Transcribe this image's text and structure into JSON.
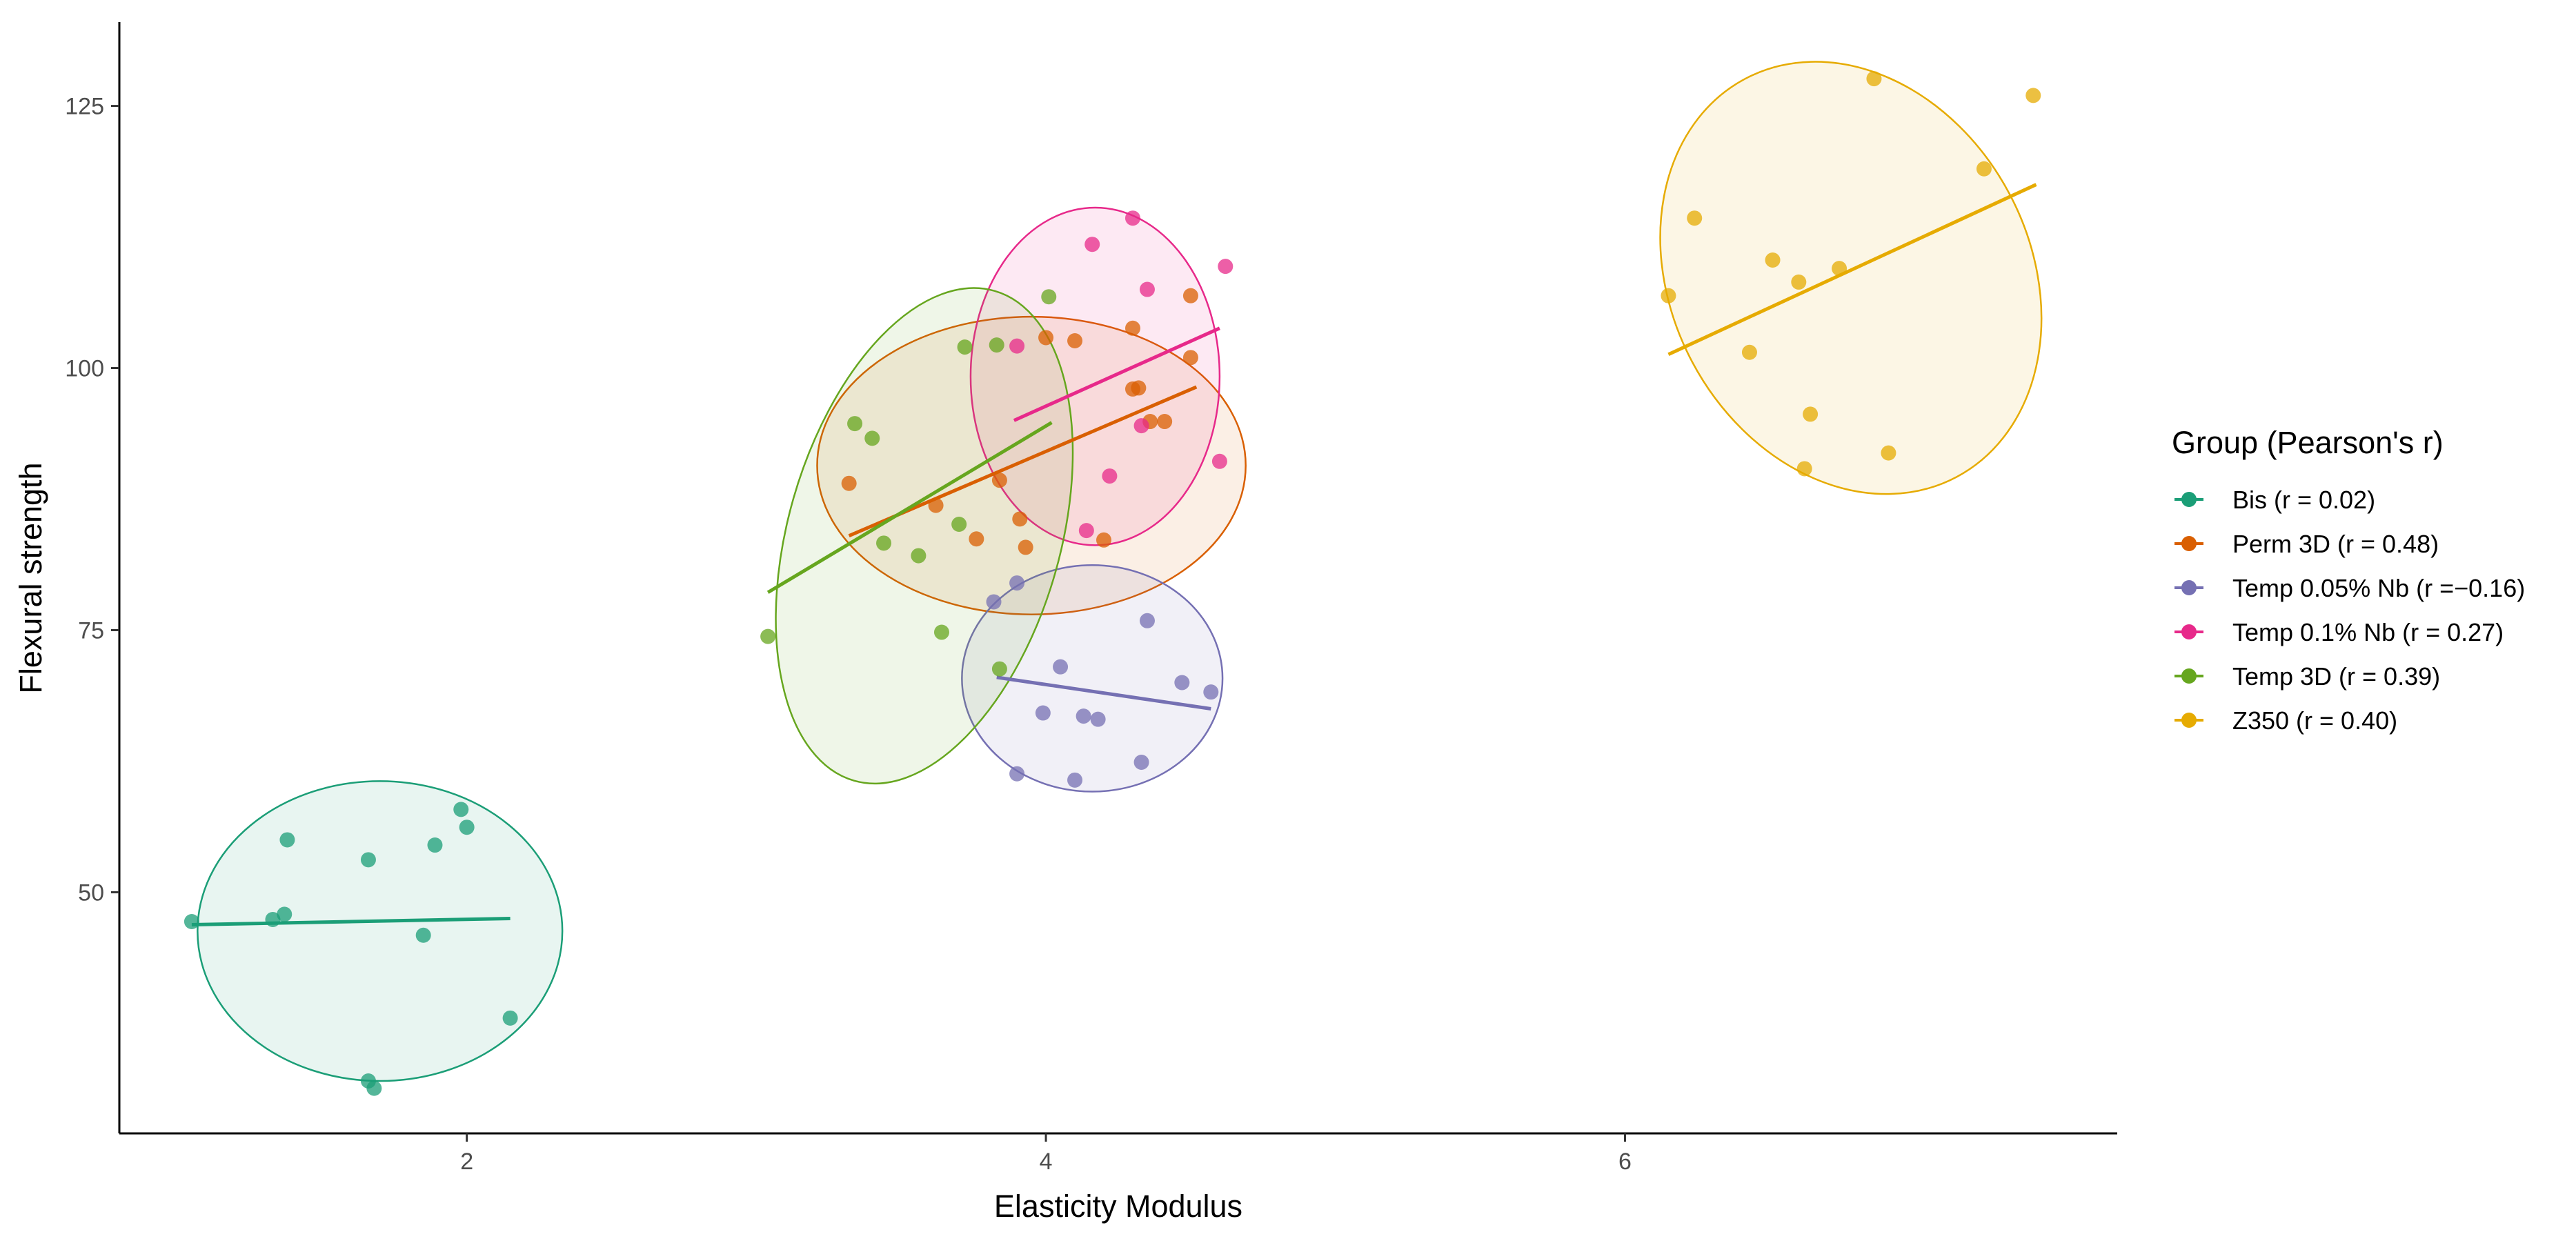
{
  "chart_data": {
    "type": "scatter",
    "xlabel": "Elasticity Modulus",
    "ylabel": "Flexural strength",
    "xlim": [
      0.8,
      7.7
    ],
    "ylim": [
      27,
      133
    ],
    "x_ticks": [
      2,
      4,
      6
    ],
    "y_ticks": [
      50,
      75,
      100,
      125
    ],
    "grid": false,
    "legend": {
      "title": "Group (Pearson's r)",
      "placement": "right",
      "entries": [
        "Bis (r = 0.02)",
        "Perm 3D (r = 0.48)",
        "Temp 0.05% Nb (r =−0.16)",
        "Temp 0.1% Nb (r = 0.27)",
        "Temp 3D (r = 0.39)",
        "Z350 (r = 0.40)"
      ]
    },
    "series": [
      {
        "name": "Bis",
        "color": "#1b9e77",
        "points": [
          [
            1.05,
            47.2
          ],
          [
            1.33,
            47.4
          ],
          [
            1.37,
            47.9
          ],
          [
            1.38,
            55.0
          ],
          [
            1.66,
            53.1
          ],
          [
            1.66,
            32.0
          ],
          [
            1.68,
            31.3
          ],
          [
            1.85,
            45.9
          ],
          [
            1.89,
            54.5
          ],
          [
            1.98,
            57.9
          ],
          [
            2.0,
            56.2
          ],
          [
            2.15,
            38.0
          ]
        ],
        "fit": [
          [
            1.05,
            46.9
          ],
          [
            2.15,
            47.5
          ]
        ],
        "ellipse": {
          "cx": 1.7,
          "cy": 46.3,
          "rx": 0.63,
          "ry": 14.3,
          "angle": 0
        }
      },
      {
        "name": "Perm 3D",
        "color": "#d95f02",
        "points": [
          [
            3.32,
            89.0
          ],
          [
            3.62,
            86.9
          ],
          [
            3.76,
            83.7
          ],
          [
            3.84,
            89.3
          ],
          [
            3.91,
            85.6
          ],
          [
            3.93,
            82.9
          ],
          [
            4.0,
            102.9
          ],
          [
            4.1,
            102.6
          ],
          [
            4.3,
            103.8
          ],
          [
            4.3,
            98.0
          ],
          [
            4.32,
            98.1
          ],
          [
            4.36,
            94.9
          ],
          [
            4.41,
            94.9
          ],
          [
            4.5,
            101.0
          ],
          [
            4.5,
            106.9
          ],
          [
            4.2,
            83.6
          ]
        ],
        "fit": [
          [
            3.32,
            84.0
          ],
          [
            4.52,
            98.2
          ]
        ],
        "ellipse": {
          "cx": 3.95,
          "cy": 90.7,
          "rx": 0.74,
          "ry": 14.2,
          "angle": 0
        }
      },
      {
        "name": "Temp 0.05% Nb",
        "color": "#7570b3",
        "points": [
          [
            3.82,
            77.7
          ],
          [
            3.9,
            79.5
          ],
          [
            3.9,
            61.3
          ],
          [
            3.99,
            67.1
          ],
          [
            4.05,
            71.5
          ],
          [
            4.1,
            60.7
          ],
          [
            4.13,
            66.8
          ],
          [
            4.18,
            66.5
          ],
          [
            4.33,
            62.4
          ],
          [
            4.35,
            75.9
          ],
          [
            4.47,
            70.0
          ],
          [
            4.57,
            69.1
          ]
        ],
        "fit": [
          [
            3.83,
            70.5
          ],
          [
            4.57,
            67.5
          ]
        ],
        "ellipse": {
          "cx": 4.16,
          "cy": 70.4,
          "rx": 0.45,
          "ry": 10.8,
          "angle": 0
        }
      },
      {
        "name": "Temp 0.1% Nb",
        "color": "#e7298a",
        "points": [
          [
            3.9,
            102.1
          ],
          [
            4.16,
            111.8
          ],
          [
            4.22,
            89.7
          ],
          [
            4.3,
            114.3
          ],
          [
            4.33,
            94.5
          ],
          [
            4.35,
            107.5
          ],
          [
            4.6,
            91.1
          ],
          [
            4.62,
            109.7
          ],
          [
            4.14,
            84.5
          ]
        ],
        "fit": [
          [
            3.89,
            95.0
          ],
          [
            4.6,
            103.8
          ]
        ],
        "ellipse": {
          "cx": 4.17,
          "cy": 99.2,
          "rx": 0.43,
          "ry": 16.1,
          "angle": 0
        }
      },
      {
        "name": "Temp 3D",
        "color": "#66a61e",
        "points": [
          [
            3.04,
            74.4
          ],
          [
            3.34,
            94.7
          ],
          [
            3.4,
            93.3
          ],
          [
            3.44,
            83.3
          ],
          [
            3.56,
            82.1
          ],
          [
            3.64,
            74.8
          ],
          [
            3.7,
            85.1
          ],
          [
            3.72,
            102.0
          ],
          [
            3.83,
            102.2
          ],
          [
            3.84,
            71.3
          ],
          [
            4.01,
            106.8
          ]
        ],
        "fit": [
          [
            3.04,
            78.6
          ],
          [
            4.02,
            94.8
          ]
        ],
        "ellipse": {
          "cx": 3.58,
          "cy": 84.0,
          "rx": 0.47,
          "ry": 24.3,
          "angle": -16
        }
      },
      {
        "name": "Z350",
        "color": "#e6ab02",
        "points": [
          [
            6.15,
            106.9
          ],
          [
            6.24,
            114.3
          ],
          [
            6.43,
            101.5
          ],
          [
            6.51,
            110.3
          ],
          [
            6.6,
            108.2
          ],
          [
            6.62,
            90.4
          ],
          [
            6.64,
            95.6
          ],
          [
            6.74,
            109.5
          ],
          [
            6.86,
            127.6
          ],
          [
            6.91,
            91.9
          ],
          [
            7.24,
            119.0
          ],
          [
            7.41,
            126.0
          ]
        ],
        "fit": [
          [
            6.15,
            101.3
          ],
          [
            7.42,
            117.5
          ]
        ],
        "ellipse": {
          "cx": 6.78,
          "cy": 108.6,
          "rx": 0.62,
          "ry": 21.5,
          "angle": 28
        }
      }
    ]
  }
}
